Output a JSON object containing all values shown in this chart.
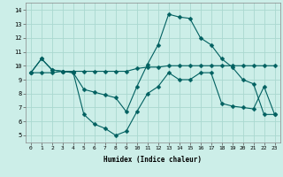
{
  "xlabel": "Humidex (Indice chaleur)",
  "bg_color": "#cceee8",
  "grid_color": "#aad8d0",
  "line_color": "#006060",
  "xlim": [
    -0.5,
    23.5
  ],
  "ylim": [
    4.5,
    14.5
  ],
  "xticks": [
    0,
    1,
    2,
    3,
    4,
    5,
    6,
    7,
    8,
    9,
    10,
    11,
    12,
    13,
    14,
    15,
    16,
    17,
    18,
    19,
    20,
    21,
    22,
    23
  ],
  "yticks": [
    5,
    6,
    7,
    8,
    9,
    10,
    11,
    12,
    13,
    14
  ],
  "line1_x": [
    0,
    1,
    2,
    3,
    4,
    5,
    6,
    7,
    8,
    9,
    10,
    11,
    12,
    13,
    14,
    15,
    16,
    17,
    18,
    19,
    20,
    21,
    22,
    23
  ],
  "line1_y": [
    9.5,
    10.5,
    9.7,
    9.6,
    9.5,
    8.3,
    8.1,
    7.9,
    7.7,
    6.7,
    8.5,
    10.1,
    11.5,
    13.7,
    13.5,
    13.4,
    12.0,
    11.5,
    10.5,
    9.9,
    9.0,
    8.7,
    6.5,
    6.5
  ],
  "line2_x": [
    0,
    1,
    2,
    3,
    4,
    5,
    6,
    7,
    8,
    9,
    10,
    11,
    12,
    13,
    14,
    15,
    16,
    17,
    18,
    19,
    20,
    21,
    22,
    23
  ],
  "line2_y": [
    9.5,
    10.5,
    9.7,
    9.6,
    9.5,
    6.5,
    5.8,
    5.5,
    5.0,
    5.3,
    6.7,
    8.0,
    8.5,
    9.5,
    9.0,
    9.0,
    9.5,
    9.5,
    7.3,
    7.1,
    7.0,
    6.9,
    8.5,
    6.5
  ],
  "line3_x": [
    0,
    1,
    2,
    3,
    4,
    5,
    6,
    7,
    8,
    9,
    10,
    11,
    12,
    13,
    14,
    15,
    16,
    17,
    18,
    19,
    20,
    21,
    22,
    23
  ],
  "line3_y": [
    9.5,
    9.5,
    9.5,
    9.6,
    9.6,
    9.6,
    9.6,
    9.6,
    9.6,
    9.6,
    9.8,
    9.9,
    9.9,
    10.0,
    10.0,
    10.0,
    10.0,
    10.0,
    10.0,
    10.0,
    10.0,
    10.0,
    10.0,
    10.0
  ]
}
